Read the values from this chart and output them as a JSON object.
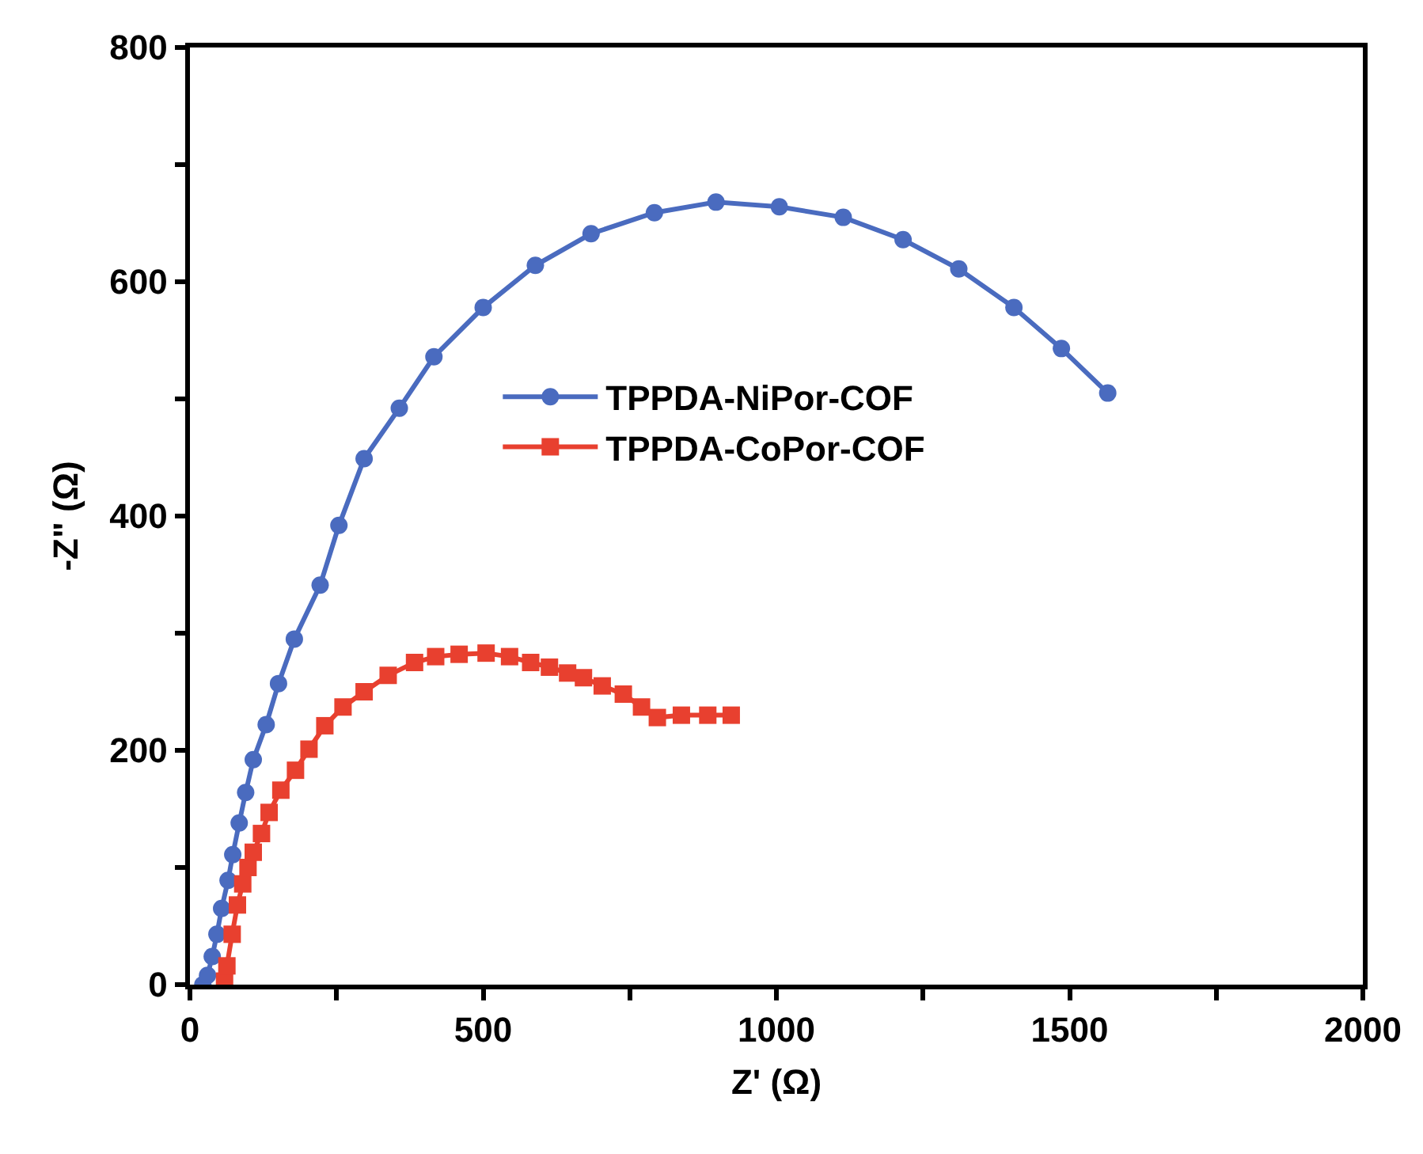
{
  "chart_data": {
    "type": "line",
    "xlabel": "Z' (Ω)",
    "ylabel": "-Z\" (Ω)",
    "xlim": [
      0,
      2000
    ],
    "ylim": [
      0,
      800
    ],
    "xticks": [
      0,
      {
        "value": 250,
        "label": null
      },
      500,
      {
        "value": 750,
        "label": null
      },
      1000,
      {
        "value": 1250,
        "label": null
      },
      1500,
      {
        "value": 1750,
        "label": null
      },
      2000
    ],
    "yticks": [
      0,
      {
        "value": 100,
        "label": null
      },
      200,
      {
        "value": 300,
        "label": null
      },
      400,
      {
        "value": 500,
        "label": null
      },
      600,
      {
        "value": 700,
        "label": null
      },
      800
    ],
    "grid": false,
    "legend": "center",
    "line_style": "solid",
    "series": [
      {
        "name": "TPPDA-NiPor-COF",
        "color": "#4a6bbf",
        "marker": "circle",
        "x": [
          22,
          30,
          38,
          46,
          54,
          65,
          73,
          84,
          95,
          108,
          130,
          151,
          178,
          222,
          254,
          297,
          357,
          416,
          500,
          589,
          684,
          792,
          897,
          1005,
          1114,
          1216,
          1311,
          1405,
          1486,
          1565
        ],
        "values": [
          0,
          8,
          24,
          43,
          65,
          89,
          111,
          138,
          164,
          192,
          222,
          257,
          295,
          341,
          392,
          449,
          492,
          536,
          578,
          614,
          641,
          659,
          668,
          664,
          655,
          636,
          611,
          578,
          543,
          505
        ]
      },
      {
        "name": "TPPDA-CoPor-COF",
        "color": "#e8402f",
        "marker": "square",
        "x": [
          59,
          63,
          72,
          81,
          90,
          99,
          108,
          122,
          135,
          155,
          180,
          203,
          230,
          261,
          297,
          338,
          383,
          419,
          459,
          505,
          545,
          581,
          613,
          644,
          671,
          703,
          739,
          770,
          797,
          838,
          883,
          923
        ],
        "values": [
          3,
          16,
          43,
          68,
          86,
          100,
          113,
          129,
          147,
          166,
          183,
          201,
          221,
          237,
          250,
          264,
          275,
          280,
          282,
          283,
          280,
          275,
          271,
          266,
          262,
          255,
          248,
          237,
          228,
          230,
          230,
          230
        ]
      }
    ]
  }
}
